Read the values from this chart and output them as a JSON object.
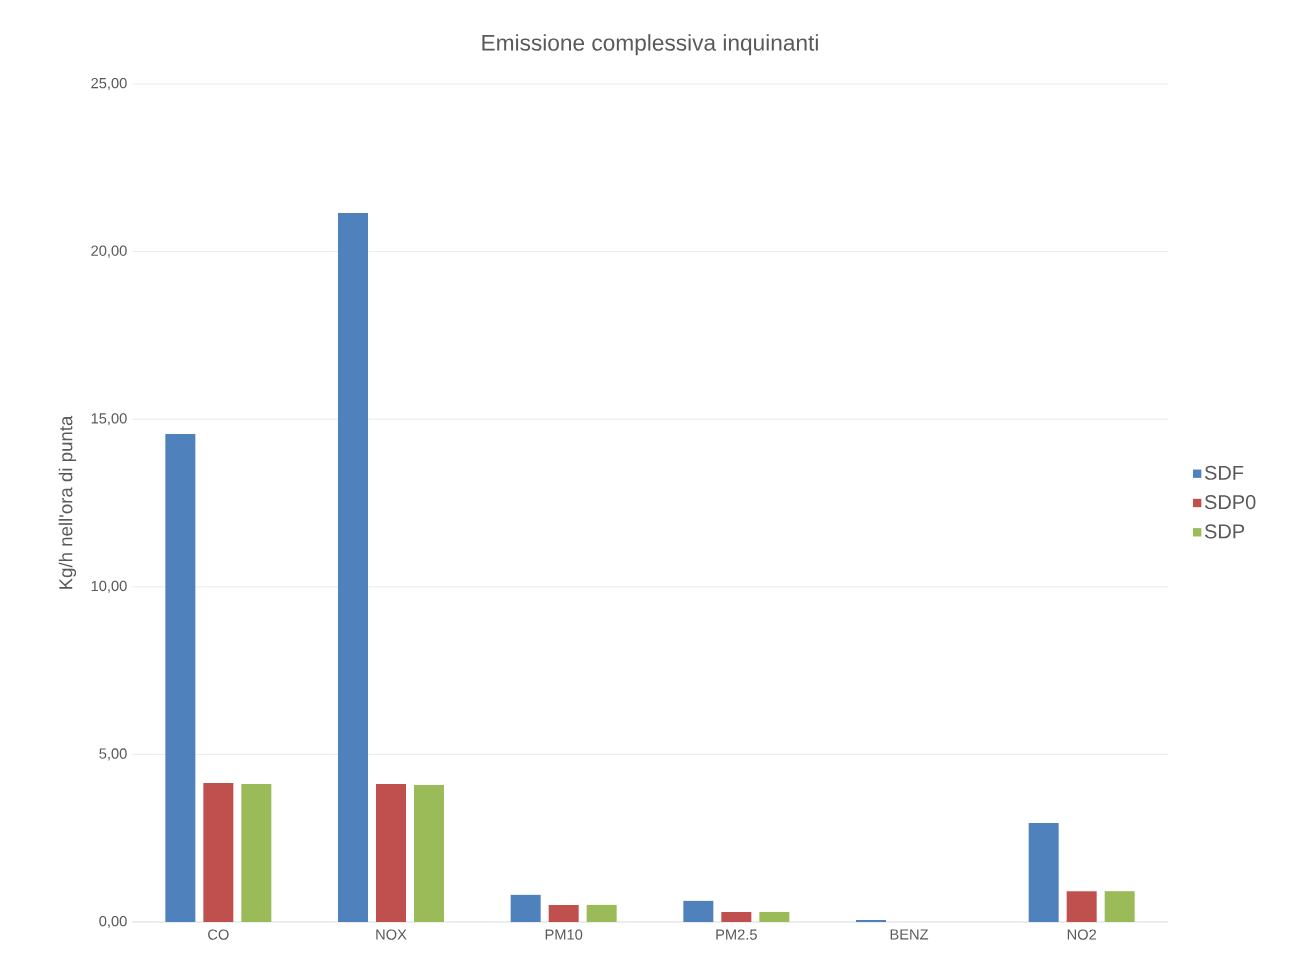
{
  "chart_data": {
    "type": "bar",
    "title": "Emissione complessiva inquinanti",
    "ylabel": "Kg/h nell'ora di punta",
    "categories": [
      "CO",
      "NOX",
      "PM10",
      "PM2.5",
      "BENZ",
      "NO2"
    ],
    "series": [
      {
        "name": "SDF",
        "color": "#4f81bd",
        "values": [
          14.56,
          21.15,
          0.81,
          0.63,
          0.06,
          2.95
        ]
      },
      {
        "name": "SDP0",
        "color": "#c0504d",
        "values": [
          4.15,
          4.12,
          0.51,
          0.3,
          0.0,
          0.92
        ]
      },
      {
        "name": "SDP",
        "color": "#9bbb59",
        "values": [
          4.12,
          4.09,
          0.51,
          0.3,
          0.0,
          0.92
        ]
      }
    ],
    "ylim": [
      0,
      25
    ],
    "yticks": [
      {
        "value": 0,
        "label": "0,00"
      },
      {
        "value": 5,
        "label": "5,00"
      },
      {
        "value": 10,
        "label": "10,00"
      },
      {
        "value": 15,
        "label": "15,00"
      },
      {
        "value": 20,
        "label": "20,00"
      },
      {
        "value": 25,
        "label": "25,00"
      }
    ],
    "grid": "y",
    "legend": "right"
  }
}
